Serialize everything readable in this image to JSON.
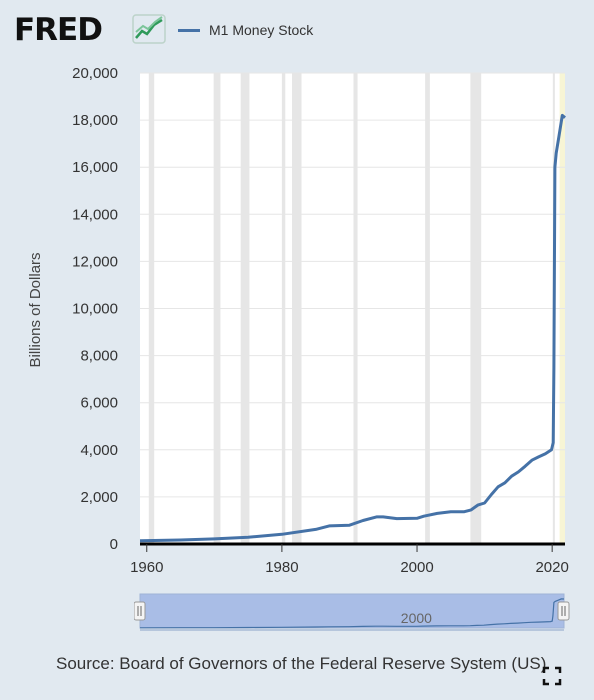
{
  "header": {
    "logo_text": "FRED",
    "legend_label": "M1 Money Stock"
  },
  "colors": {
    "series": "#4572a7",
    "recession": "#e6e6e6",
    "plot_bg": "#ffffff",
    "page_bg": "#e1e9f0",
    "navigator_fill": "#a9bde6",
    "forecast_band": "#f7f5d5"
  },
  "chart_data": {
    "type": "line",
    "title": "",
    "xlabel": "",
    "ylabel": "Billions of Dollars",
    "xlim": [
      1959,
      2021.9
    ],
    "ylim": [
      0,
      20000
    ],
    "x_ticks": [
      1960,
      1980,
      2000,
      2020
    ],
    "y_ticks": [
      0,
      2000,
      4000,
      6000,
      8000,
      10000,
      12000,
      14000,
      16000,
      18000,
      20000
    ],
    "y_tick_labels": [
      "0",
      "2,000",
      "4,000",
      "6,000",
      "8,000",
      "10,000",
      "12,000",
      "14,000",
      "16,000",
      "18,000",
      "20,000"
    ],
    "x_tick_labels": [
      "1960",
      "1980",
      "2000",
      "2020"
    ],
    "legend": "top-left",
    "grid": "horizontal",
    "recessions": [
      [
        1960.3,
        1961.1
      ],
      [
        1969.9,
        1970.9
      ],
      [
        1973.9,
        1975.2
      ],
      [
        1980.0,
        1980.5
      ],
      [
        1981.5,
        1982.9
      ],
      [
        1990.6,
        1991.2
      ],
      [
        2001.2,
        2001.9
      ],
      [
        2007.9,
        2009.5
      ],
      [
        2020.1,
        2020.4
      ]
    ],
    "series": [
      {
        "name": "M1 Money Stock",
        "x": [
          1959,
          1965,
          1970,
          1975,
          1980,
          1985,
          1987,
          1990,
          1992,
          1994,
          1995,
          1997,
          2000,
          2001,
          2003,
          2005,
          2007,
          2008,
          2009,
          2010,
          2011,
          2012,
          2013,
          2014,
          2015,
          2016,
          2017,
          2018,
          2019,
          2019.9,
          2020.15,
          2020.25,
          2020.4,
          2020.6,
          2021.0,
          2021.5,
          2021.9
        ],
        "y": [
          140,
          170,
          215,
          290,
          410,
          620,
          770,
          800,
          1000,
          1150,
          1150,
          1080,
          1090,
          1180,
          1300,
          1370,
          1370,
          1450,
          1650,
          1740,
          2100,
          2430,
          2600,
          2880,
          3060,
          3300,
          3560,
          3700,
          3830,
          4000,
          4300,
          7500,
          16000,
          16600,
          17300,
          18200,
          18100
        ]
      }
    ],
    "navigator": {
      "tick_labels": [
        "2000"
      ]
    }
  },
  "footer": {
    "source": "Source: Board of Governors of the Federal Reserve System (US)"
  }
}
